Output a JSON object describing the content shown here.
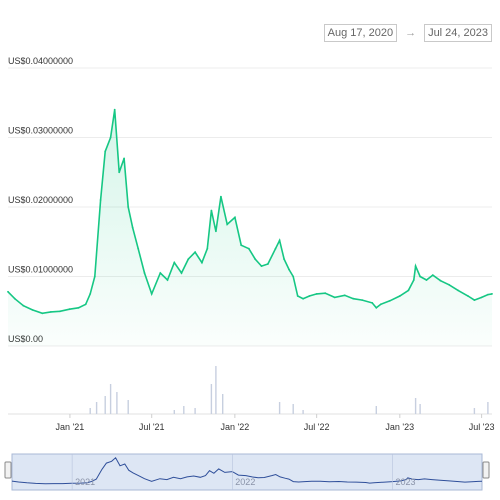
{
  "date_range": {
    "from": "Aug 17, 2020",
    "to": "Jul 24, 2023",
    "arrow": "→"
  },
  "colors": {
    "line": "#16c784",
    "volume": "#c7cfdf",
    "navigator_line": "#2f4f9a",
    "navigator_bg": "#dde6f4"
  },
  "chart_data": {
    "type": "line",
    "title": "",
    "xlabel": "",
    "ylabel": "",
    "y_ticks": [
      {
        "value": 0,
        "label": "US$0.00"
      },
      {
        "value": 0.01,
        "label": "US$0.01000000"
      },
      {
        "value": 0.02,
        "label": "US$0.02000000"
      },
      {
        "value": 0.03,
        "label": "US$0.03000000"
      },
      {
        "value": 0.04,
        "label": "US$0.04000000"
      }
    ],
    "ylim": [
      0,
      0.04
    ],
    "x_ticks": [
      {
        "date": "2021-01-01",
        "label": "Jan '21"
      },
      {
        "date": "2021-07-01",
        "label": "Jul '21"
      },
      {
        "date": "2022-01-01",
        "label": "Jan '22"
      },
      {
        "date": "2022-07-01",
        "label": "Jul '22"
      },
      {
        "date": "2023-01-01",
        "label": "Jan '23"
      },
      {
        "date": "2023-07-01",
        "label": "Jul '23"
      }
    ],
    "navigator_ticks": [
      {
        "date": "2021-01-01",
        "label": "2021"
      },
      {
        "date": "2022-01-01",
        "label": "2022"
      },
      {
        "date": "2023-01-01",
        "label": "2023"
      }
    ],
    "xlim": [
      "2020-08-17",
      "2023-07-24"
    ],
    "series": [
      {
        "x": [
          "2020-08-17",
          "2020-09-01",
          "2020-09-20",
          "2020-10-10",
          "2020-11-01",
          "2020-11-20",
          "2020-12-10",
          "2020-12-31",
          "2021-01-20",
          "2021-02-05",
          "2021-02-15",
          "2021-02-25",
          "2021-03-10",
          "2021-03-20",
          "2021-04-01",
          "2021-04-10",
          "2021-04-20",
          "2021-05-01",
          "2021-05-10",
          "2021-05-20",
          "2021-06-01",
          "2021-06-15",
          "2021-07-01",
          "2021-07-20",
          "2021-08-05",
          "2021-08-20",
          "2021-09-05",
          "2021-09-20",
          "2021-10-05",
          "2021-10-20",
          "2021-11-01",
          "2021-11-10",
          "2021-11-20",
          "2021-12-01",
          "2021-12-15",
          "2022-01-01",
          "2022-01-15",
          "2022-02-01",
          "2022-02-15",
          "2022-03-01",
          "2022-03-15",
          "2022-04-01",
          "2022-04-10",
          "2022-04-20",
          "2022-05-01",
          "2022-05-10",
          "2022-05-20",
          "2022-06-01",
          "2022-06-15",
          "2022-07-01",
          "2022-07-20",
          "2022-08-10",
          "2022-09-01",
          "2022-09-20",
          "2022-10-10",
          "2022-11-01",
          "2022-11-10",
          "2022-11-20",
          "2022-12-10",
          "2023-01-01",
          "2023-01-20",
          "2023-02-01",
          "2023-02-05",
          "2023-02-15",
          "2023-03-01",
          "2023-03-15",
          "2023-04-01",
          "2023-04-20",
          "2023-05-10",
          "2023-06-01",
          "2023-06-15",
          "2023-07-01",
          "2023-07-15",
          "2023-07-24"
        ],
        "y": [
          0.0078,
          0.0068,
          0.0058,
          0.0052,
          0.0047,
          0.0049,
          0.005,
          0.0053,
          0.0055,
          0.006,
          0.0075,
          0.01,
          0.021,
          0.028,
          0.03,
          0.034,
          0.025,
          0.027,
          0.02,
          0.017,
          0.014,
          0.0105,
          0.0075,
          0.0105,
          0.0095,
          0.012,
          0.0105,
          0.0125,
          0.0135,
          0.012,
          0.014,
          0.0195,
          0.0165,
          0.0215,
          0.0175,
          0.0185,
          0.0145,
          0.014,
          0.0125,
          0.0115,
          0.0118,
          0.014,
          0.0152,
          0.0125,
          0.011,
          0.01,
          0.0072,
          0.0068,
          0.0072,
          0.0075,
          0.0076,
          0.007,
          0.0073,
          0.0068,
          0.0066,
          0.0062,
          0.0055,
          0.006,
          0.0065,
          0.0072,
          0.008,
          0.0095,
          0.0115,
          0.01,
          0.0095,
          0.0102,
          0.0094,
          0.0088,
          0.008,
          0.0072,
          0.0066,
          0.007,
          0.0074,
          0.0075
        ]
      }
    ],
    "volume": {
      "x": [
        "2021-02-15",
        "2021-03-01",
        "2021-03-20",
        "2021-04-01",
        "2021-04-15",
        "2021-05-10",
        "2021-08-20",
        "2021-09-10",
        "2021-10-05",
        "2021-11-10",
        "2021-11-20",
        "2021-12-05",
        "2022-04-10",
        "2022-05-10",
        "2022-06-01",
        "2022-11-10",
        "2023-02-05",
        "2023-02-15",
        "2023-06-15",
        "2023-07-15"
      ],
      "values": [
        6,
        12,
        18,
        30,
        22,
        14,
        4,
        8,
        6,
        30,
        48,
        20,
        12,
        10,
        4,
        8,
        16,
        10,
        6,
        12
      ]
    }
  }
}
